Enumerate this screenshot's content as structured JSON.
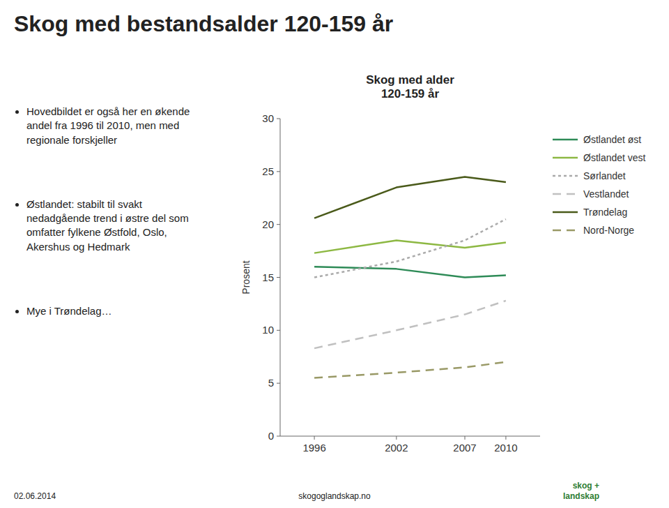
{
  "title": "Skog med bestandsalder 120-159 år",
  "bullets": [
    "Hovedbildet er også her en økende\nandel fra 1996 til 2010, men med\nregionale forskjeller",
    "Østlandet: stabilt til svakt\nnedadgående trend i østre del som\nomfatter fylkene Østfold, Oslo,\nAkershus og Hedmark",
    "Mye i Trøndelag…"
  ],
  "footer": {
    "left": "02.06.2014",
    "center": "skogoglandskap.no",
    "right": [
      "skog +",
      "landskap"
    ]
  },
  "chart_data": {
    "type": "line",
    "title": "Skog med alder\n120-159 år",
    "y_label": "Prosent",
    "x": [
      1996,
      2002,
      2007,
      2010
    ],
    "xlim": [
      1993.5,
      2012.5
    ],
    "xticks": [
      1996,
      2002,
      2007,
      2010
    ],
    "ylim": [
      0,
      30
    ],
    "yticks": [
      0,
      5,
      10,
      15,
      20,
      25,
      30
    ],
    "grid": false,
    "legend": "right",
    "series": [
      {
        "name": "Østlandet øst",
        "color": "#2e8b57",
        "line_style": "solid",
        "values": [
          16.0,
          15.8,
          15.0,
          15.2
        ]
      },
      {
        "name": "Østlandet vest",
        "color": "#8db843",
        "line_style": "solid",
        "values": [
          17.3,
          18.5,
          17.8,
          18.3
        ]
      },
      {
        "name": "Sørlandet",
        "color": "#aaaaaa",
        "line_style": "dotted",
        "values": [
          15.0,
          16.5,
          18.5,
          20.5
        ]
      },
      {
        "name": "Vestlandet",
        "color": "#c0c0c0",
        "line_style": "dashed",
        "values": [
          8.3,
          10.0,
          11.5,
          12.8
        ]
      },
      {
        "name": "Trøndelag",
        "color": "#4a5a1a",
        "line_style": "solid",
        "values": [
          20.6,
          23.5,
          24.5,
          24.0
        ]
      },
      {
        "name": "Nord-Norge",
        "color": "#999966",
        "line_style": "dashed",
        "values": [
          5.5,
          6.0,
          6.5,
          7.0
        ]
      }
    ]
  }
}
